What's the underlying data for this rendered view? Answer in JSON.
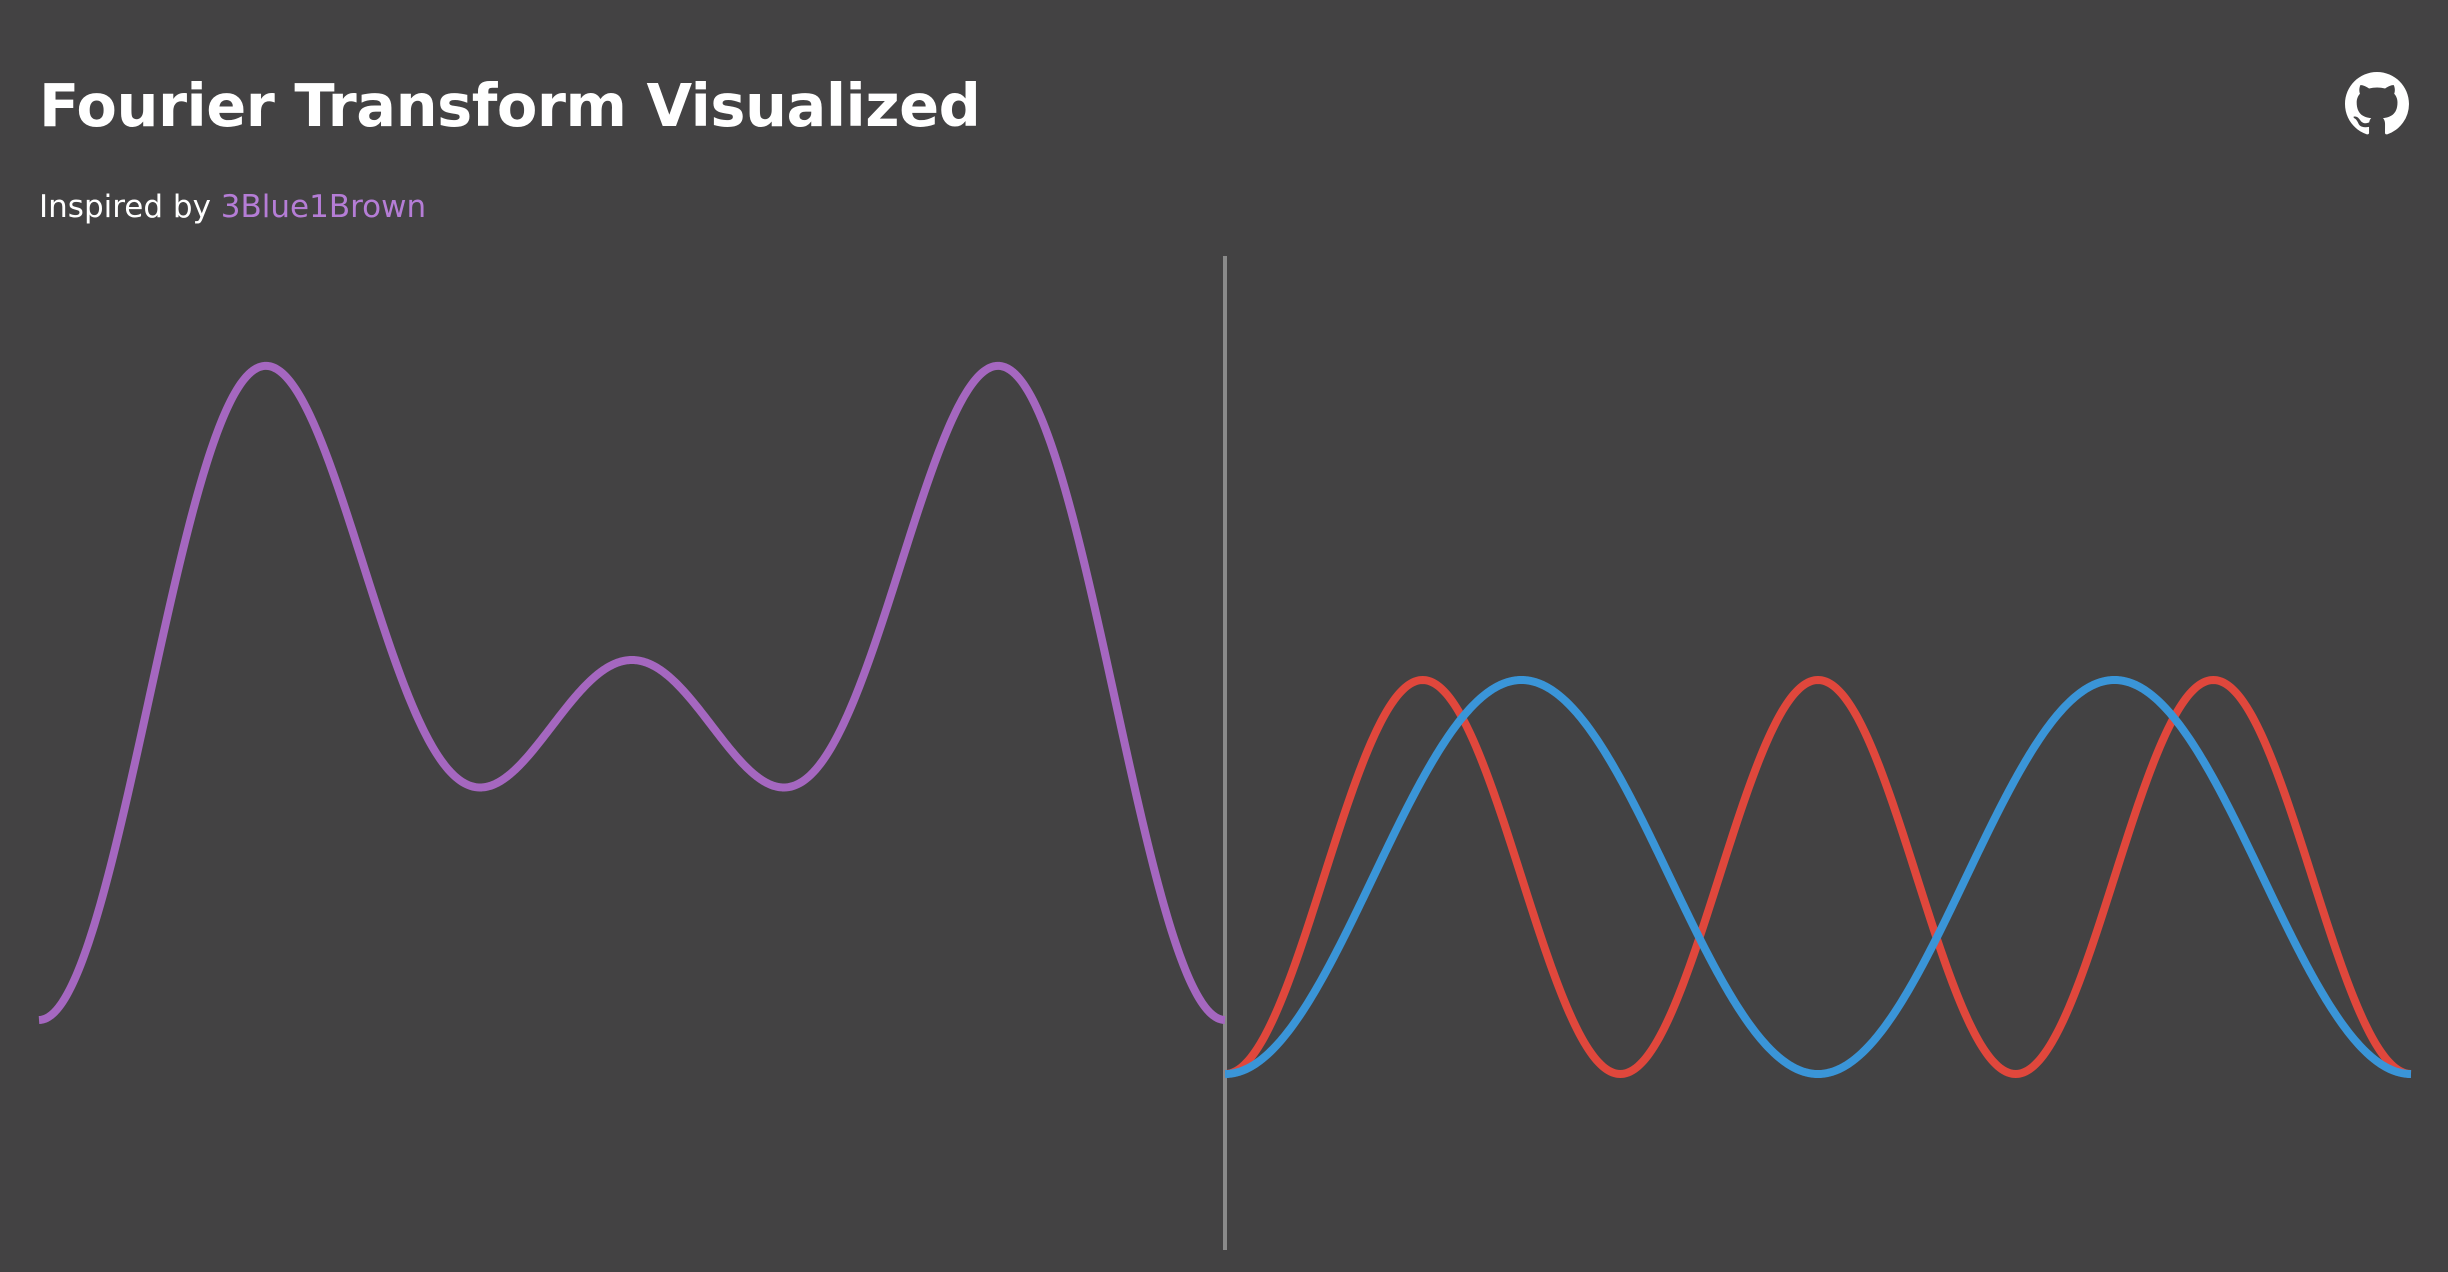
{
  "header": {
    "title": "Fourier Transform Visualized",
    "subtitle_prefix": "Inspired by",
    "credit_link": "3Blue1Brown",
    "github_icon": "github-icon"
  },
  "colors": {
    "background": "#434243",
    "title": "#ffffff",
    "link": "#b57dd6",
    "composite_wave": "#a567c0",
    "cosine_wave": "#e0473c",
    "sine_wave": "#3a95d8",
    "divider": "#8a8a8a"
  },
  "chart_data": [
    {
      "type": "line",
      "title": "",
      "xlabel": "",
      "ylabel": "",
      "grid": false,
      "legend": "none",
      "xlim": [
        0,
        1
      ],
      "ylim": [
        -1,
        1
      ],
      "series": [
        {
          "color": "#a567c0",
          "components": [
            {
              "freq": 2,
              "amp": 0.5,
              "phase": 0.5
            },
            {
              "freq": 3,
              "amp": 0.5,
              "phase": 0.5
            }
          ]
        }
      ]
    },
    {
      "type": "line",
      "title": "",
      "xlabel": "",
      "ylabel": "",
      "grid": false,
      "legend": "none",
      "xlim": [
        0,
        1
      ],
      "ylim": [
        -1,
        1
      ],
      "series": [
        {
          "color": "#e0473c",
          "freq": 3,
          "amp": 0.5,
          "phase": 0.5
        },
        {
          "color": "#3a95d8",
          "freq": 2,
          "amp": 0.5,
          "phase": 0.5
        }
      ]
    }
  ]
}
